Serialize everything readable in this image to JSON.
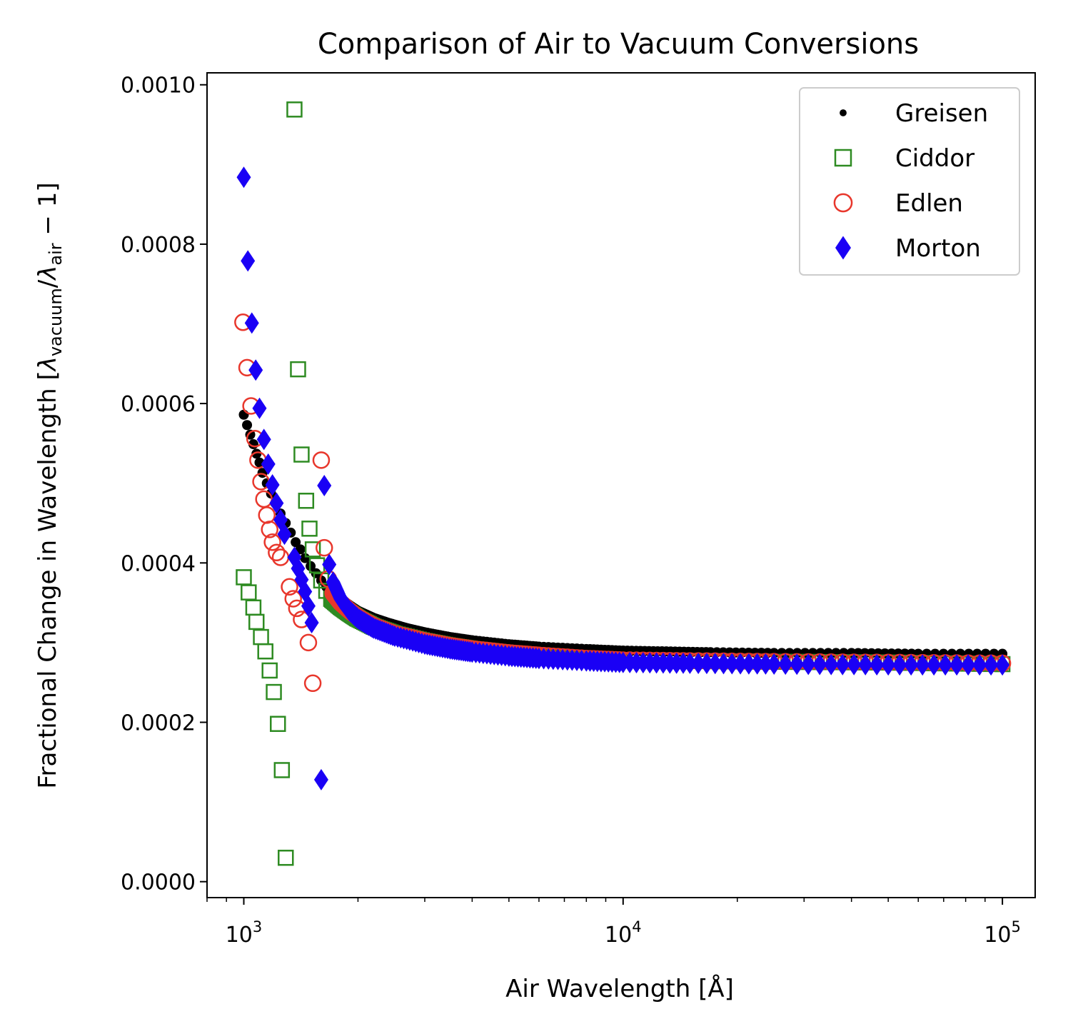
{
  "chart_data": {
    "type": "scatter",
    "title": "Comparison of Air to Vacuum Conversions",
    "xlabel": "Air Wavelength [Å]",
    "ylabel": {
      "prefix": "Fractional Change in Wavelength [",
      "lambda": "λ",
      "sub_vacuum": "vacuum",
      "slash": "/",
      "sub_air": "air",
      "suffix": " − 1]"
    },
    "x_scale": "log",
    "xlim": [
      800,
      122000
    ],
    "ylim": [
      -2e-05,
      0.001015
    ],
    "x_ticks": [
      {
        "value": 1000,
        "base": "10",
        "exp": "3"
      },
      {
        "value": 10000,
        "base": "10",
        "exp": "4"
      },
      {
        "value": 100000,
        "base": "10",
        "exp": "5"
      }
    ],
    "y_ticks": [
      {
        "value": 0.0,
        "label": "0.0000"
      },
      {
        "value": 0.0002,
        "label": "0.0002"
      },
      {
        "value": 0.0004,
        "label": "0.0004"
      },
      {
        "value": 0.0006,
        "label": "0.0006"
      },
      {
        "value": 0.0008,
        "label": "0.0008"
      },
      {
        "value": 0.001,
        "label": "0.0010"
      }
    ],
    "grid": false,
    "legend_position": "top-right",
    "series": [
      {
        "name": "Greisen",
        "marker": "dot",
        "color": "#000000",
        "points": [
          [
            1000,
            0.000586
          ],
          [
            1020,
            0.000573
          ],
          [
            1040,
            0.000561
          ],
          [
            1060,
            0.000549
          ],
          [
            1080,
            0.000537
          ],
          [
            1100,
            0.000526
          ],
          [
            1120,
            0.000513
          ],
          [
            1150,
            0.0005
          ],
          [
            1180,
            0.000487
          ],
          [
            1210,
            0.000475
          ],
          [
            1250,
            0.000462
          ],
          [
            1290,
            0.00045
          ],
          [
            1330,
            0.000438
          ],
          [
            1370,
            0.000426
          ],
          [
            1410,
            0.000417
          ],
          [
            1450,
            0.000406
          ],
          [
            1500,
            0.000396
          ],
          [
            1550,
            0.000387
          ],
          [
            1600,
            0.000378
          ],
          [
            1650,
            0.00037
          ],
          [
            1700,
            0.000364
          ],
          [
            1800,
            0.000355
          ],
          [
            1900,
            0.000347
          ],
          [
            2000,
            0.00034
          ],
          [
            2200,
            0.000331
          ],
          [
            2400,
            0.000325
          ],
          [
            2700,
            0.000318
          ],
          [
            3000,
            0.000313
          ],
          [
            3500,
            0.000307
          ],
          [
            4000,
            0.000303
          ],
          [
            5000,
            0.000298
          ],
          [
            6000,
            0.000295
          ],
          [
            8000,
            0.000292
          ],
          [
            10000,
            0.00029
          ],
          [
            13000,
            0.000289
          ],
          [
            17000,
            0.000288
          ],
          [
            25000,
            0.000287
          ],
          [
            40000,
            0.000287
          ],
          [
            60000,
            0.000286
          ],
          [
            100000,
            0.000286
          ]
        ]
      },
      {
        "name": "Ciddor",
        "marker": "square",
        "color": "#2e8b22",
        "points": [
          [
            1000,
            0.000382
          ],
          [
            1030,
            0.000363
          ],
          [
            1060,
            0.000344
          ],
          [
            1080,
            0.000326
          ],
          [
            1110,
            0.000307
          ],
          [
            1140,
            0.000289
          ],
          [
            1170,
            0.000265
          ],
          [
            1200,
            0.000238
          ],
          [
            1230,
            0.000198
          ],
          [
            1260,
            0.00014
          ],
          [
            1290,
            3e-05
          ],
          [
            1360,
            0.000969
          ],
          [
            1390,
            0.000643
          ],
          [
            1420,
            0.000536
          ],
          [
            1460,
            0.000478
          ],
          [
            1490,
            0.000443
          ],
          [
            1520,
            0.000417
          ],
          [
            1560,
            0.000397
          ],
          [
            1600,
            0.000378
          ],
          [
            1650,
            0.000365
          ],
          [
            1700,
            0.000355
          ],
          [
            1800,
            0.000345
          ],
          [
            1900,
            0.000337
          ],
          [
            2000,
            0.00033
          ],
          [
            2200,
            0.00032
          ],
          [
            2500,
            0.000311
          ],
          [
            3000,
            0.000302
          ],
          [
            3500,
            0.000296
          ],
          [
            4000,
            0.000292
          ],
          [
            5000,
            0.000287
          ],
          [
            6000,
            0.000284
          ],
          [
            8000,
            0.00028
          ],
          [
            10000,
            0.000278
          ],
          [
            15000,
            0.000277
          ],
          [
            25000,
            0.000276
          ],
          [
            50000,
            0.000275
          ],
          [
            100000,
            0.000273
          ]
        ]
      },
      {
        "name": "Edlen",
        "marker": "circle",
        "color": "#e8372c",
        "points": [
          [
            995,
            0.000702
          ],
          [
            1020,
            0.000645
          ],
          [
            1045,
            0.000597
          ],
          [
            1070,
            0.000556
          ],
          [
            1090,
            0.000529
          ],
          [
            1110,
            0.000502
          ],
          [
            1130,
            0.00048
          ],
          [
            1150,
            0.00046
          ],
          [
            1170,
            0.000442
          ],
          [
            1190,
            0.000426
          ],
          [
            1220,
            0.000413
          ],
          [
            1250,
            0.000407
          ],
          [
            1320,
            0.00037
          ],
          [
            1350,
            0.000355
          ],
          [
            1380,
            0.000343
          ],
          [
            1420,
            0.000329
          ],
          [
            1480,
            0.0003
          ],
          [
            1520,
            0.000249
          ],
          [
            1600,
            0.000529
          ],
          [
            1630,
            0.000419
          ],
          [
            1670,
            0.00038
          ],
          [
            1720,
            0.000362
          ],
          [
            1800,
            0.00035
          ],
          [
            1900,
            0.00034
          ],
          [
            2000,
            0.000332
          ],
          [
            2200,
            0.000321
          ],
          [
            2500,
            0.000311
          ],
          [
            3000,
            0.000302
          ],
          [
            3500,
            0.000296
          ],
          [
            4000,
            0.000292
          ],
          [
            5000,
            0.000287
          ],
          [
            6000,
            0.000284
          ],
          [
            8000,
            0.00028
          ],
          [
            10000,
            0.000278
          ],
          [
            15000,
            0.000277
          ],
          [
            25000,
            0.000276
          ],
          [
            50000,
            0.000275
          ],
          [
            100000,
            0.000274
          ]
        ]
      },
      {
        "name": "Morton",
        "marker": "diamond",
        "color": "#1a00f5",
        "points": [
          [
            1000,
            0.000884
          ],
          [
            1025,
            0.000779
          ],
          [
            1050,
            0.000701
          ],
          [
            1075,
            0.000642
          ],
          [
            1100,
            0.000594
          ],
          [
            1130,
            0.000555
          ],
          [
            1160,
            0.000524
          ],
          [
            1190,
            0.000498
          ],
          [
            1220,
            0.000475
          ],
          [
            1250,
            0.000454
          ],
          [
            1280,
            0.000436
          ],
          [
            1360,
            0.000407
          ],
          [
            1390,
            0.000393
          ],
          [
            1420,
            0.000379
          ],
          [
            1450,
            0.000364
          ],
          [
            1480,
            0.000346
          ],
          [
            1510,
            0.000325
          ],
          [
            1600,
            0.000128
          ],
          [
            1630,
            0.000497
          ],
          [
            1680,
            0.000398
          ],
          [
            1720,
            0.000376
          ],
          [
            1800,
            0.000355
          ],
          [
            1900,
            0.00034
          ],
          [
            2000,
            0.00033
          ],
          [
            2200,
            0.000318
          ],
          [
            2500,
            0.000308
          ],
          [
            3000,
            0.000298
          ],
          [
            3500,
            0.000292
          ],
          [
            4000,
            0.000288
          ],
          [
            5000,
            0.000283
          ],
          [
            6000,
            0.00028
          ],
          [
            8000,
            0.000277
          ],
          [
            10000,
            0.000275
          ],
          [
            15000,
            0.000274
          ],
          [
            25000,
            0.000273
          ],
          [
            50000,
            0.000272
          ],
          [
            100000,
            0.000272
          ]
        ]
      }
    ]
  }
}
